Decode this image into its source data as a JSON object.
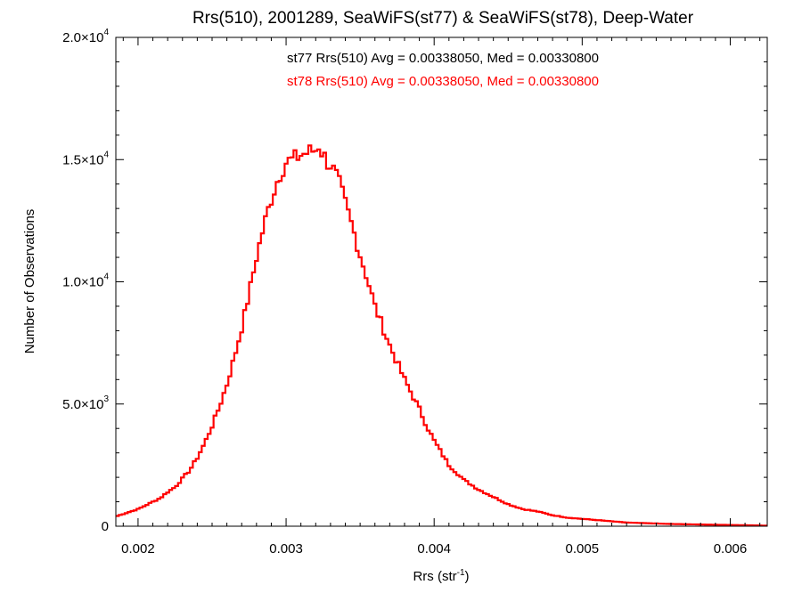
{
  "chart_data": {
    "type": "histogram-step",
    "title": "Rrs(510), 2001289, SeaWiFS(st77) & SeaWiFS(st78), Deep-Water",
    "xlabel": {
      "text": "Rrs (str",
      "sup": "-1",
      "tail": ")"
    },
    "ylabel": "Number of Observations",
    "xlim": [
      0.00185,
      0.00625
    ],
    "ylim": [
      0,
      20000
    ],
    "xticks": [
      {
        "value": 0.002,
        "label": "0.002"
      },
      {
        "value": 0.003,
        "label": "0.003"
      },
      {
        "value": 0.004,
        "label": "0.004"
      },
      {
        "value": 0.005,
        "label": "0.005"
      },
      {
        "value": 0.006,
        "label": "0.006"
      }
    ],
    "yticks": [
      {
        "value": 0,
        "mant": "0",
        "exp": ""
      },
      {
        "value": 5000,
        "mant": "5.0×10",
        "exp": "3"
      },
      {
        "value": 10000,
        "mant": "1.0×10",
        "exp": "4"
      },
      {
        "value": 15000,
        "mant": "1.5×10",
        "exp": "4"
      },
      {
        "value": 20000,
        "mant": "2.0×10",
        "exp": "4"
      }
    ],
    "annotations": [
      {
        "text": "st77 Rrs(510) Avg = 0.00338050, Med = 0.00330800",
        "color": "#000000"
      },
      {
        "text": "st78 Rrs(510) Avg = 0.00338050, Med = 0.00330800",
        "color": "#ff0000"
      }
    ],
    "series": [
      {
        "color": "#ff0000",
        "bin_width": 2e-05,
        "x": [
          0.00185,
          0.0019,
          0.00195,
          0.002,
          0.00205,
          0.0021,
          0.00215,
          0.0022,
          0.00225,
          0.0023,
          0.00235,
          0.0024,
          0.00245,
          0.0025,
          0.00255,
          0.0026,
          0.00265,
          0.0027,
          0.00275,
          0.0028,
          0.00285,
          0.0029,
          0.00295,
          0.003,
          0.00305,
          0.0031,
          0.00315,
          0.0032,
          0.00322,
          0.00325,
          0.00328,
          0.0033,
          0.00335,
          0.0034,
          0.00345,
          0.0035,
          0.00355,
          0.0036,
          0.00365,
          0.0037,
          0.00375,
          0.0038,
          0.00385,
          0.0039,
          0.00395,
          0.004,
          0.00405,
          0.0041,
          0.00415,
          0.0042,
          0.0043,
          0.0044,
          0.0045,
          0.0046,
          0.0047,
          0.0048,
          0.0049,
          0.005,
          0.0051,
          0.0052,
          0.0053,
          0.0054,
          0.0055,
          0.0056,
          0.0057,
          0.0058,
          0.0059,
          0.006,
          0.0061,
          0.0062,
          0.00625
        ],
        "y": [
          400,
          500,
          600,
          700,
          850,
          1000,
          1150,
          1400,
          1600,
          1950,
          2300,
          2800,
          3400,
          4100,
          4900,
          5800,
          6900,
          8100,
          9500,
          11000,
          12300,
          13400,
          14300,
          14900,
          15000,
          15200,
          15300,
          15400,
          15600,
          15200,
          14900,
          14800,
          14200,
          13200,
          12200,
          11100,
          10100,
          9000,
          8200,
          7400,
          6700,
          6000,
          5400,
          4800,
          4100,
          3500,
          3000,
          2500,
          2200,
          1900,
          1500,
          1200,
          900,
          700,
          600,
          450,
          350,
          300,
          250,
          200,
          150,
          130,
          110,
          90,
          80,
          70,
          60,
          50,
          40,
          30,
          20
        ]
      }
    ]
  }
}
